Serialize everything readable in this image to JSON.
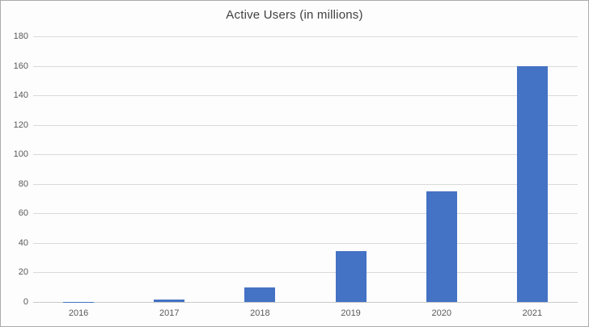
{
  "chart_data": {
    "type": "bar",
    "title": "Active Users (in millions)",
    "categories": [
      "2016",
      "2017",
      "2018",
      "2019",
      "2020",
      "2021"
    ],
    "values": [
      0.5,
      2,
      10,
      35,
      75,
      160
    ],
    "xlabel": "",
    "ylabel": "",
    "ylim": [
      0,
      180
    ],
    "ytick_step": 20,
    "yticks": [
      0,
      20,
      40,
      60,
      80,
      100,
      120,
      140,
      160,
      180
    ],
    "grid": "horizontal",
    "legend": "none",
    "colors": {
      "bar": "#4472C4",
      "gridline": "#d9d9d9",
      "baseline": "#c9c9c9",
      "tick_label": "#595959",
      "title": "#404040",
      "frame_border": "#ababab",
      "background": "#fdfdfd"
    }
  }
}
